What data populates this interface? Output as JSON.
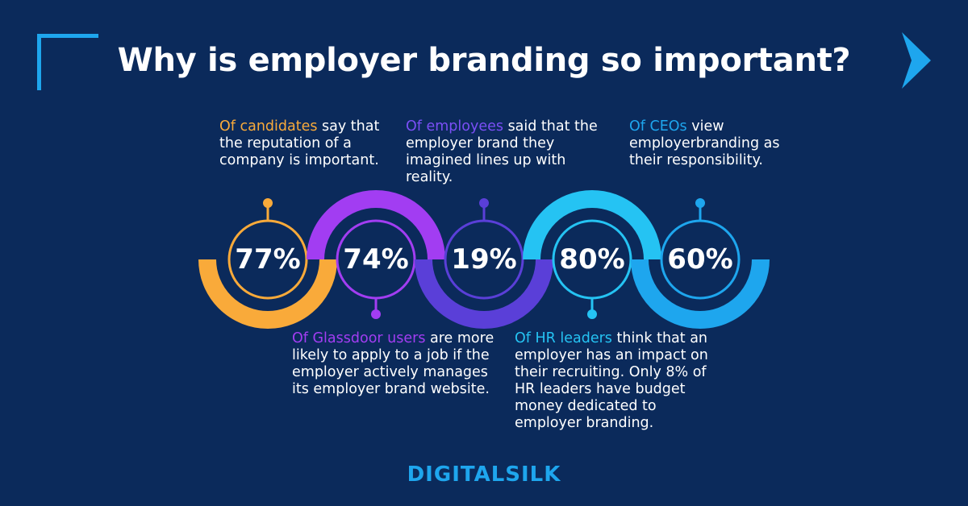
{
  "title": "Why is employer branding so important?",
  "colors": {
    "background": "#0b2a5b",
    "orange": "#f9aa3a",
    "purple": "#a23df2",
    "indigo": "#5a3fd8",
    "cyan": "#25c3f3",
    "blue": "#1ea6ee"
  },
  "stats": [
    {
      "value": "77%",
      "highlight": "Of candidates",
      "text": " say that the reputation of a company is important."
    },
    {
      "value": "74%",
      "highlight": "Of Glassdoor users",
      "text": " are more likely to apply to a job if the employer actively manages its employer brand website."
    },
    {
      "value": "19%",
      "highlight": "Of employees",
      "text": " said that the employer brand they imagined lines up with reality."
    },
    {
      "value": "80%",
      "highlight": "Of HR leaders",
      "text": " think that an employer has an impact on their recruiting. Only 8% of HR leaders have budget money dedicated to employer branding."
    },
    {
      "value": "60%",
      "highlight": "Of CEOs",
      "text": " view employerbranding as their responsibility."
    }
  ],
  "logo": "DIGITALSILK",
  "icons": {
    "corner": "corner-bracket-icon",
    "next": "chevron-right-icon"
  }
}
